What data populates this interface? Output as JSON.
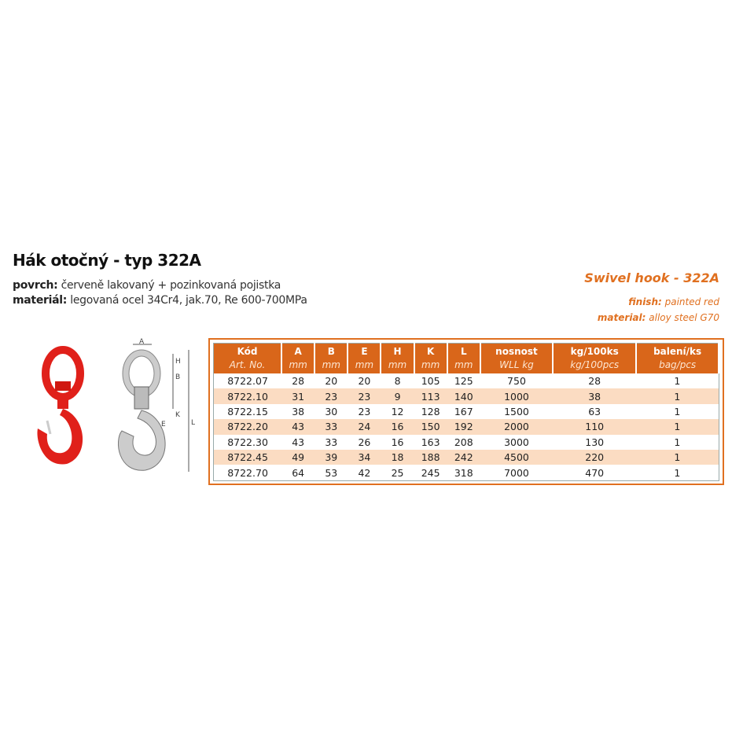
{
  "title": "Hák otočný - typ 322A",
  "specs": [
    {
      "label": "povrch:",
      "value": "červeně lakovaný + pozinkovaná pojistka"
    },
    {
      "label": "materiál:",
      "value": "legovaná ocel 34Cr4, jak.70, Re 600-700MPa"
    }
  ],
  "en": {
    "title": "Swivel hook - 322A",
    "specs": [
      {
        "label": "finish:",
        "value": "painted red"
      },
      {
        "label": "material:",
        "value": "alloy steel G70"
      }
    ]
  },
  "diagram_labels": [
    "A",
    "H",
    "B",
    "K",
    "L",
    "E"
  ],
  "table": {
    "headers": [
      [
        "Kód",
        "Art. No."
      ],
      [
        "A",
        "mm"
      ],
      [
        "B",
        "mm"
      ],
      [
        "E",
        "mm"
      ],
      [
        "H",
        "mm"
      ],
      [
        "K",
        "mm"
      ],
      [
        "L",
        "mm"
      ],
      [
        "nosnost",
        "WLL kg"
      ],
      [
        "kg/100ks",
        "kg/100pcs"
      ],
      [
        "balení/ks",
        "bag/pcs"
      ]
    ],
    "rows": [
      [
        "8722.07",
        "28",
        "20",
        "20",
        "8",
        "105",
        "125",
        "750",
        "28",
        "1"
      ],
      [
        "8722.10",
        "31",
        "23",
        "23",
        "9",
        "113",
        "140",
        "1000",
        "38",
        "1"
      ],
      [
        "8722.15",
        "38",
        "30",
        "23",
        "12",
        "128",
        "167",
        "1500",
        "63",
        "1"
      ],
      [
        "8722.20",
        "43",
        "33",
        "24",
        "16",
        "150",
        "192",
        "2000",
        "110",
        "1"
      ],
      [
        "8722.30",
        "43",
        "33",
        "26",
        "16",
        "163",
        "208",
        "3000",
        "130",
        "1"
      ],
      [
        "8722.45",
        "49",
        "39",
        "34",
        "18",
        "188",
        "242",
        "4500",
        "220",
        "1"
      ],
      [
        "8722.70",
        "64",
        "53",
        "42",
        "25",
        "245",
        "318",
        "7000",
        "470",
        "1"
      ]
    ]
  },
  "colors": {
    "accent": "#d9661a",
    "row_alt": "#fbdcc2",
    "hook": "#e0201a"
  }
}
